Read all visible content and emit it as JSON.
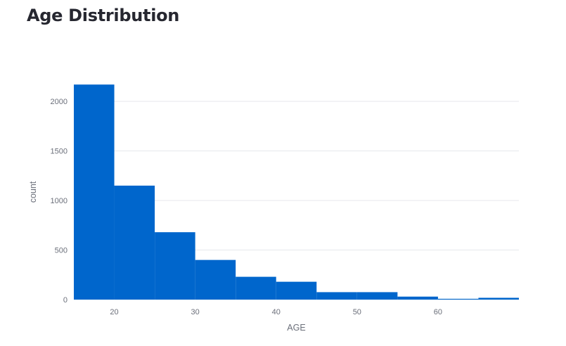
{
  "page": {
    "title": "Age Distribution"
  },
  "colors": {
    "bar": "#0066cc",
    "grid": "#e6e8ec",
    "tick_text": "#6b6f7a",
    "title_text": "#262730"
  },
  "chart_data": {
    "type": "bar",
    "title": "Age Distribution",
    "xlabel": "AGE",
    "ylabel": "count",
    "bins": [
      {
        "x0": 15,
        "x1": 20,
        "count": 2170
      },
      {
        "x0": 20,
        "x1": 25,
        "count": 1150
      },
      {
        "x0": 25,
        "x1": 30,
        "count": 680
      },
      {
        "x0": 30,
        "x1": 35,
        "count": 400
      },
      {
        "x0": 35,
        "x1": 40,
        "count": 230
      },
      {
        "x0": 40,
        "x1": 45,
        "count": 180
      },
      {
        "x0": 45,
        "x1": 50,
        "count": 75
      },
      {
        "x0": 50,
        "x1": 55,
        "count": 75
      },
      {
        "x0": 55,
        "x1": 60,
        "count": 30
      },
      {
        "x0": 60,
        "x1": 65,
        "count": 8
      },
      {
        "x0": 65,
        "x1": 70,
        "count": 18
      }
    ],
    "xlim": [
      15,
      70
    ],
    "ylim": [
      0,
      2200
    ],
    "xticks": [
      20,
      30,
      40,
      50,
      60
    ],
    "yticks": [
      0,
      500,
      1000,
      1500,
      2000
    ],
    "grid": true,
    "legend": "none"
  }
}
